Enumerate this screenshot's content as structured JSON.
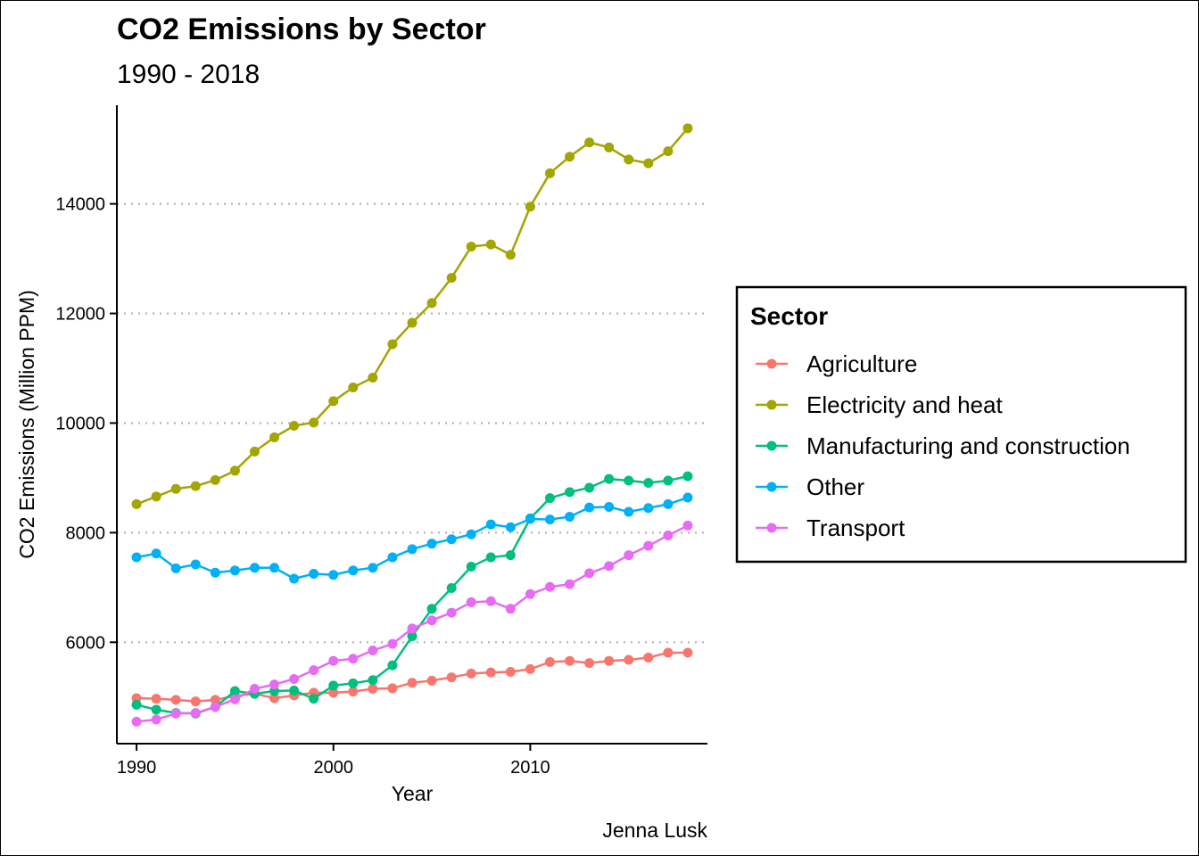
{
  "chart_data": {
    "type": "line",
    "title": "CO2 Emissions by Sector",
    "subtitle": "1990 - 2018",
    "xlabel": "Year",
    "ylabel": "CO2 Emissions (Million PPM)",
    "caption": "Jenna Lusk",
    "xlim": [
      1989,
      2019
    ],
    "ylim": [
      4150,
      15800
    ],
    "x_ticks": [
      1990,
      2000,
      2010
    ],
    "y_ticks": [
      6000,
      8000,
      10000,
      12000,
      14000
    ],
    "grid": "horizontal dotted",
    "legend": {
      "title": "Sector",
      "placement": "right"
    },
    "x": [
      1990,
      1991,
      1992,
      1993,
      1994,
      1995,
      1996,
      1997,
      1998,
      1999,
      2000,
      2001,
      2002,
      2003,
      2004,
      2005,
      2006,
      2007,
      2008,
      2009,
      2010,
      2011,
      2012,
      2013,
      2014,
      2015,
      2016,
      2017,
      2018
    ],
    "series": [
      {
        "name": "Agriculture",
        "color": "#F8766D",
        "values": [
          4980,
          4970,
          4950,
          4920,
          4950,
          5020,
          5060,
          4980,
          5030,
          5080,
          5080,
          5100,
          5150,
          5160,
          5260,
          5300,
          5360,
          5430,
          5450,
          5460,
          5510,
          5640,
          5660,
          5620,
          5660,
          5680,
          5720,
          5810,
          5810
        ]
      },
      {
        "name": "Electricity and heat",
        "color": "#A3A500",
        "values": [
          8520,
          8660,
          8800,
          8850,
          8960,
          9130,
          9480,
          9740,
          9950,
          10010,
          10400,
          10650,
          10830,
          11440,
          11830,
          12190,
          12650,
          13220,
          13260,
          13070,
          13950,
          14560,
          14860,
          15120,
          15030,
          14810,
          14740,
          14960,
          15380
        ]
      },
      {
        "name": "Manufacturing and construction",
        "color": "#00BF7D",
        "values": [
          4860,
          4770,
          4710,
          4700,
          4820,
          5110,
          5060,
          5110,
          5120,
          4970,
          5210,
          5250,
          5310,
          5580,
          6110,
          6610,
          6990,
          7380,
          7550,
          7590,
          8260,
          8630,
          8740,
          8820,
          8980,
          8950,
          8910,
          8950,
          9030
        ]
      },
      {
        "name": "Other",
        "color": "#00B0F6",
        "values": [
          7550,
          7620,
          7350,
          7420,
          7270,
          7310,
          7360,
          7360,
          7160,
          7250,
          7230,
          7310,
          7360,
          7550,
          7700,
          7800,
          7880,
          7970,
          8150,
          8100,
          8250,
          8240,
          8290,
          8460,
          8470,
          8380,
          8450,
          8520,
          8640
        ]
      },
      {
        "name": "Transport",
        "color": "#E76BF3",
        "values": [
          4550,
          4590,
          4700,
          4710,
          4820,
          4960,
          5150,
          5230,
          5330,
          5490,
          5660,
          5700,
          5850,
          5970,
          6250,
          6400,
          6540,
          6730,
          6750,
          6610,
          6880,
          7010,
          7060,
          7260,
          7390,
          7590,
          7760,
          7950,
          8130
        ]
      }
    ]
  }
}
